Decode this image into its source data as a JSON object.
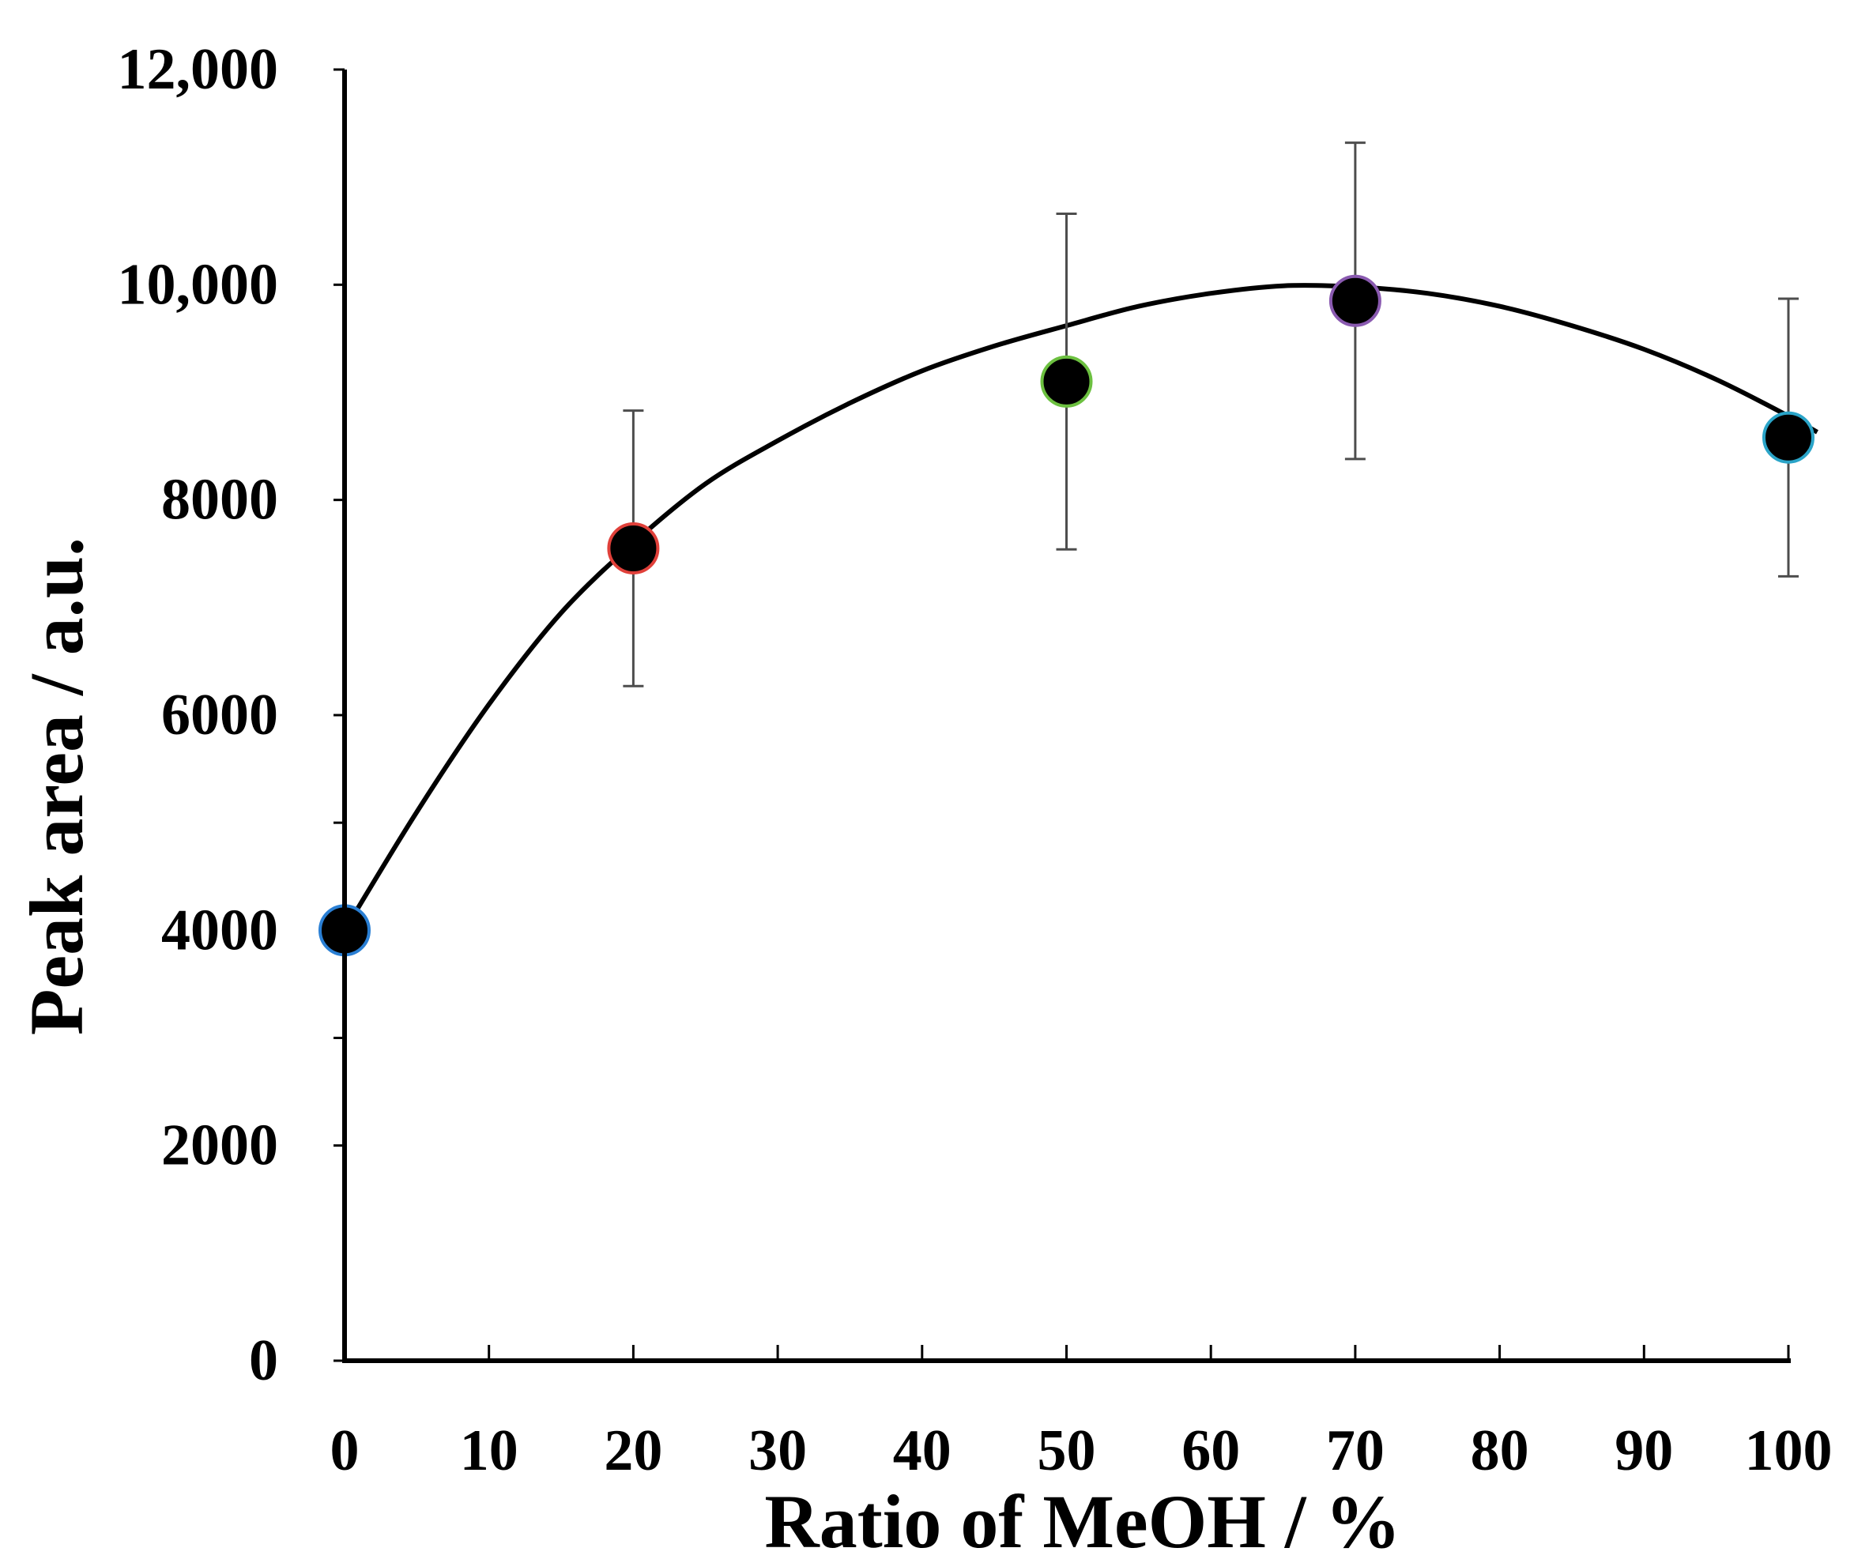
{
  "chart_data": {
    "type": "scatter",
    "xlabel": "Ratio of MeOH  / %",
    "ylabel": "Peak area / a.u.",
    "xlim": [
      0,
      100
    ],
    "ylim": [
      0,
      12000
    ],
    "x_ticks": [
      0,
      10,
      20,
      30,
      40,
      50,
      60,
      70,
      80,
      90,
      100
    ],
    "x_tick_labels": [
      "0",
      "10",
      "20",
      "30",
      "40",
      "50",
      "60",
      "70",
      "80",
      "90",
      "100"
    ],
    "y_label_ticks": [
      0,
      2000,
      4000,
      6000,
      8000,
      10000,
      12000
    ],
    "y_tick_labels": [
      "0",
      "2000",
      "4000",
      "6000",
      "8000",
      "10,000",
      "12,000"
    ],
    "y_minor_ticks": [
      5000,
      3000
    ],
    "grid": false,
    "legend": "none",
    "series": [
      {
        "points": [
          {
            "x": 0,
            "y": 4000,
            "err": 0,
            "edge": "#2a7fd4"
          },
          {
            "x": 20,
            "y": 7550,
            "err": 1280,
            "edge": "#e0403a"
          },
          {
            "x": 50,
            "y": 9100,
            "err": 1560,
            "edge": "#6cc040"
          },
          {
            "x": 70,
            "y": 9850,
            "err": 1470,
            "edge": "#8a5ab0"
          },
          {
            "x": 100,
            "y": 8580,
            "err": 1290,
            "edge": "#2aa4c8"
          }
        ],
        "marker_color": "#000000"
      }
    ],
    "fit_curve": {
      "x": [
        0,
        5,
        10,
        15,
        20,
        25,
        30,
        35,
        40,
        45,
        50,
        55,
        60,
        65,
        70,
        75,
        80,
        85,
        90,
        95,
        100,
        102
      ],
      "y": [
        4000,
        5100,
        6100,
        6950,
        7600,
        8150,
        8550,
        8900,
        9200,
        9430,
        9620,
        9800,
        9920,
        9990,
        9980,
        9920,
        9800,
        9620,
        9400,
        9120,
        8780,
        8630
      ],
      "color": "#000000"
    }
  }
}
